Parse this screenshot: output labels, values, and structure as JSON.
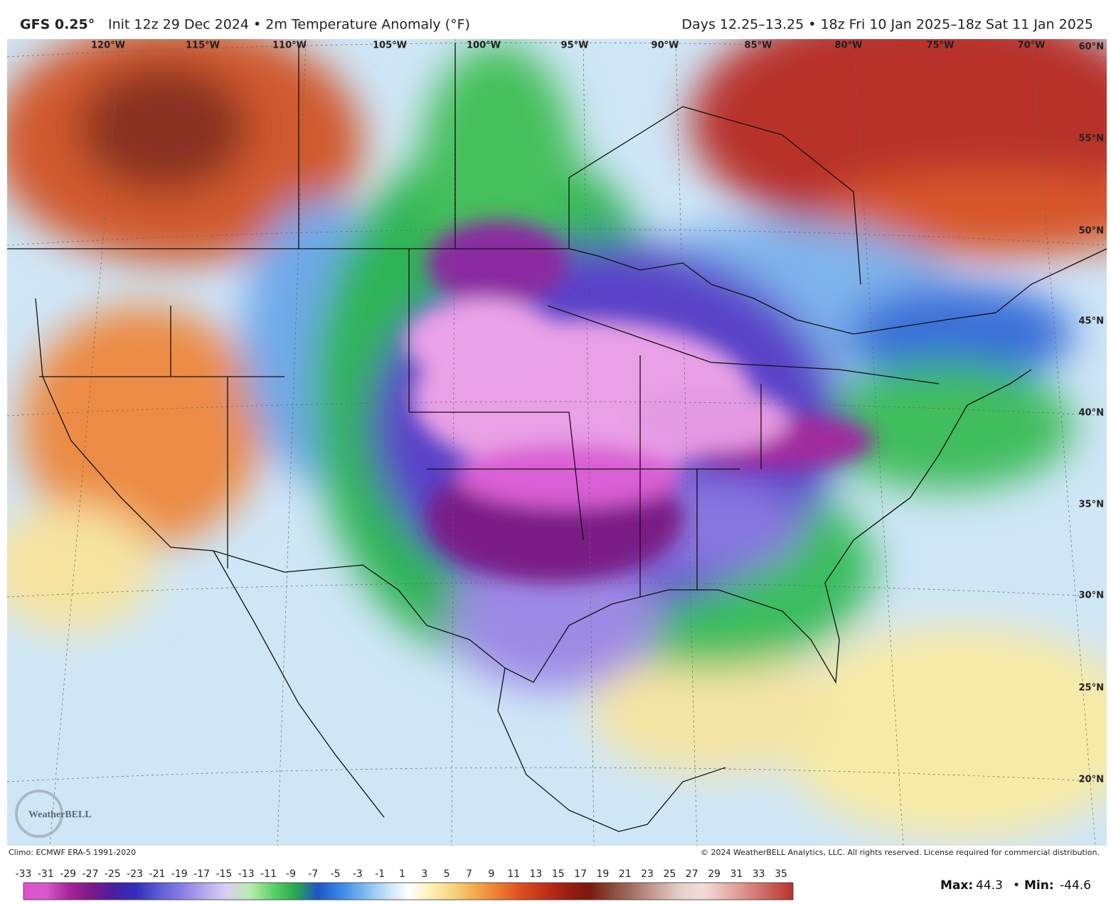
{
  "header": {
    "model": "GFS 0.25°",
    "description": "Init 12z 29 Dec 2024 • 2m Temperature Anomaly (°F)",
    "valid": "Days 12.25–13.25 • 18z Fri 10 Jan 2025–18z Sat 11 Jan 2025"
  },
  "map": {
    "longitudes": [
      "120°W",
      "115°W",
      "110°W",
      "105°W",
      "100°W",
      "95°W",
      "90°W",
      "85°W",
      "80°W",
      "75°W",
      "70°W"
    ],
    "latitudes": [
      "60°N",
      "55°N",
      "50°N",
      "45°N",
      "40°N",
      "35°N",
      "30°N",
      "25°N",
      "20°N"
    ],
    "logo": "WeatherBELL"
  },
  "footer": {
    "climo": "Climo: ECMWF ERA-5 1991-2020",
    "copyright": "© 2024 WeatherBELL Analytics, LLC. All rights reserved. License required for commercial distribution."
  },
  "colorbar": {
    "ticks": [
      -33,
      -31,
      -29,
      -27,
      -25,
      -23,
      -21,
      -19,
      -17,
      -15,
      -13,
      -11,
      -9,
      -7,
      -5,
      -3,
      -1,
      1,
      3,
      5,
      7,
      9,
      11,
      13,
      15,
      17,
      19,
      21,
      23,
      25,
      27,
      29,
      31,
      33,
      35
    ],
    "colors": [
      "#e44fd6",
      "#d45cc9",
      "#a8249a",
      "#7c1a86",
      "#4a1fa0",
      "#3030c0",
      "#5d5ed6",
      "#8a7de3",
      "#b6a9ec",
      "#d8d0f2",
      "#b9ecb0",
      "#5fd36b",
      "#27a94b",
      "#1f55c8",
      "#3b86e6",
      "#78b6f0",
      "#bfe0f7",
      "#ffffff",
      "#fbf1b4",
      "#f7d37c",
      "#f3a84d",
      "#ec7b2f",
      "#dd4c1f",
      "#c23217",
      "#9e1d11",
      "#7a1a0e",
      "#8a4a3a",
      "#a8756a",
      "#c9a39a",
      "#e6cfca",
      "#f2dcd9",
      "#e8b4b0",
      "#d98a85",
      "#c95e59",
      "#b8322a"
    ]
  },
  "stats": {
    "max_label": "Max:",
    "max": 44.3,
    "separator": "•",
    "min_label": "Min:",
    "min": -44.6
  }
}
